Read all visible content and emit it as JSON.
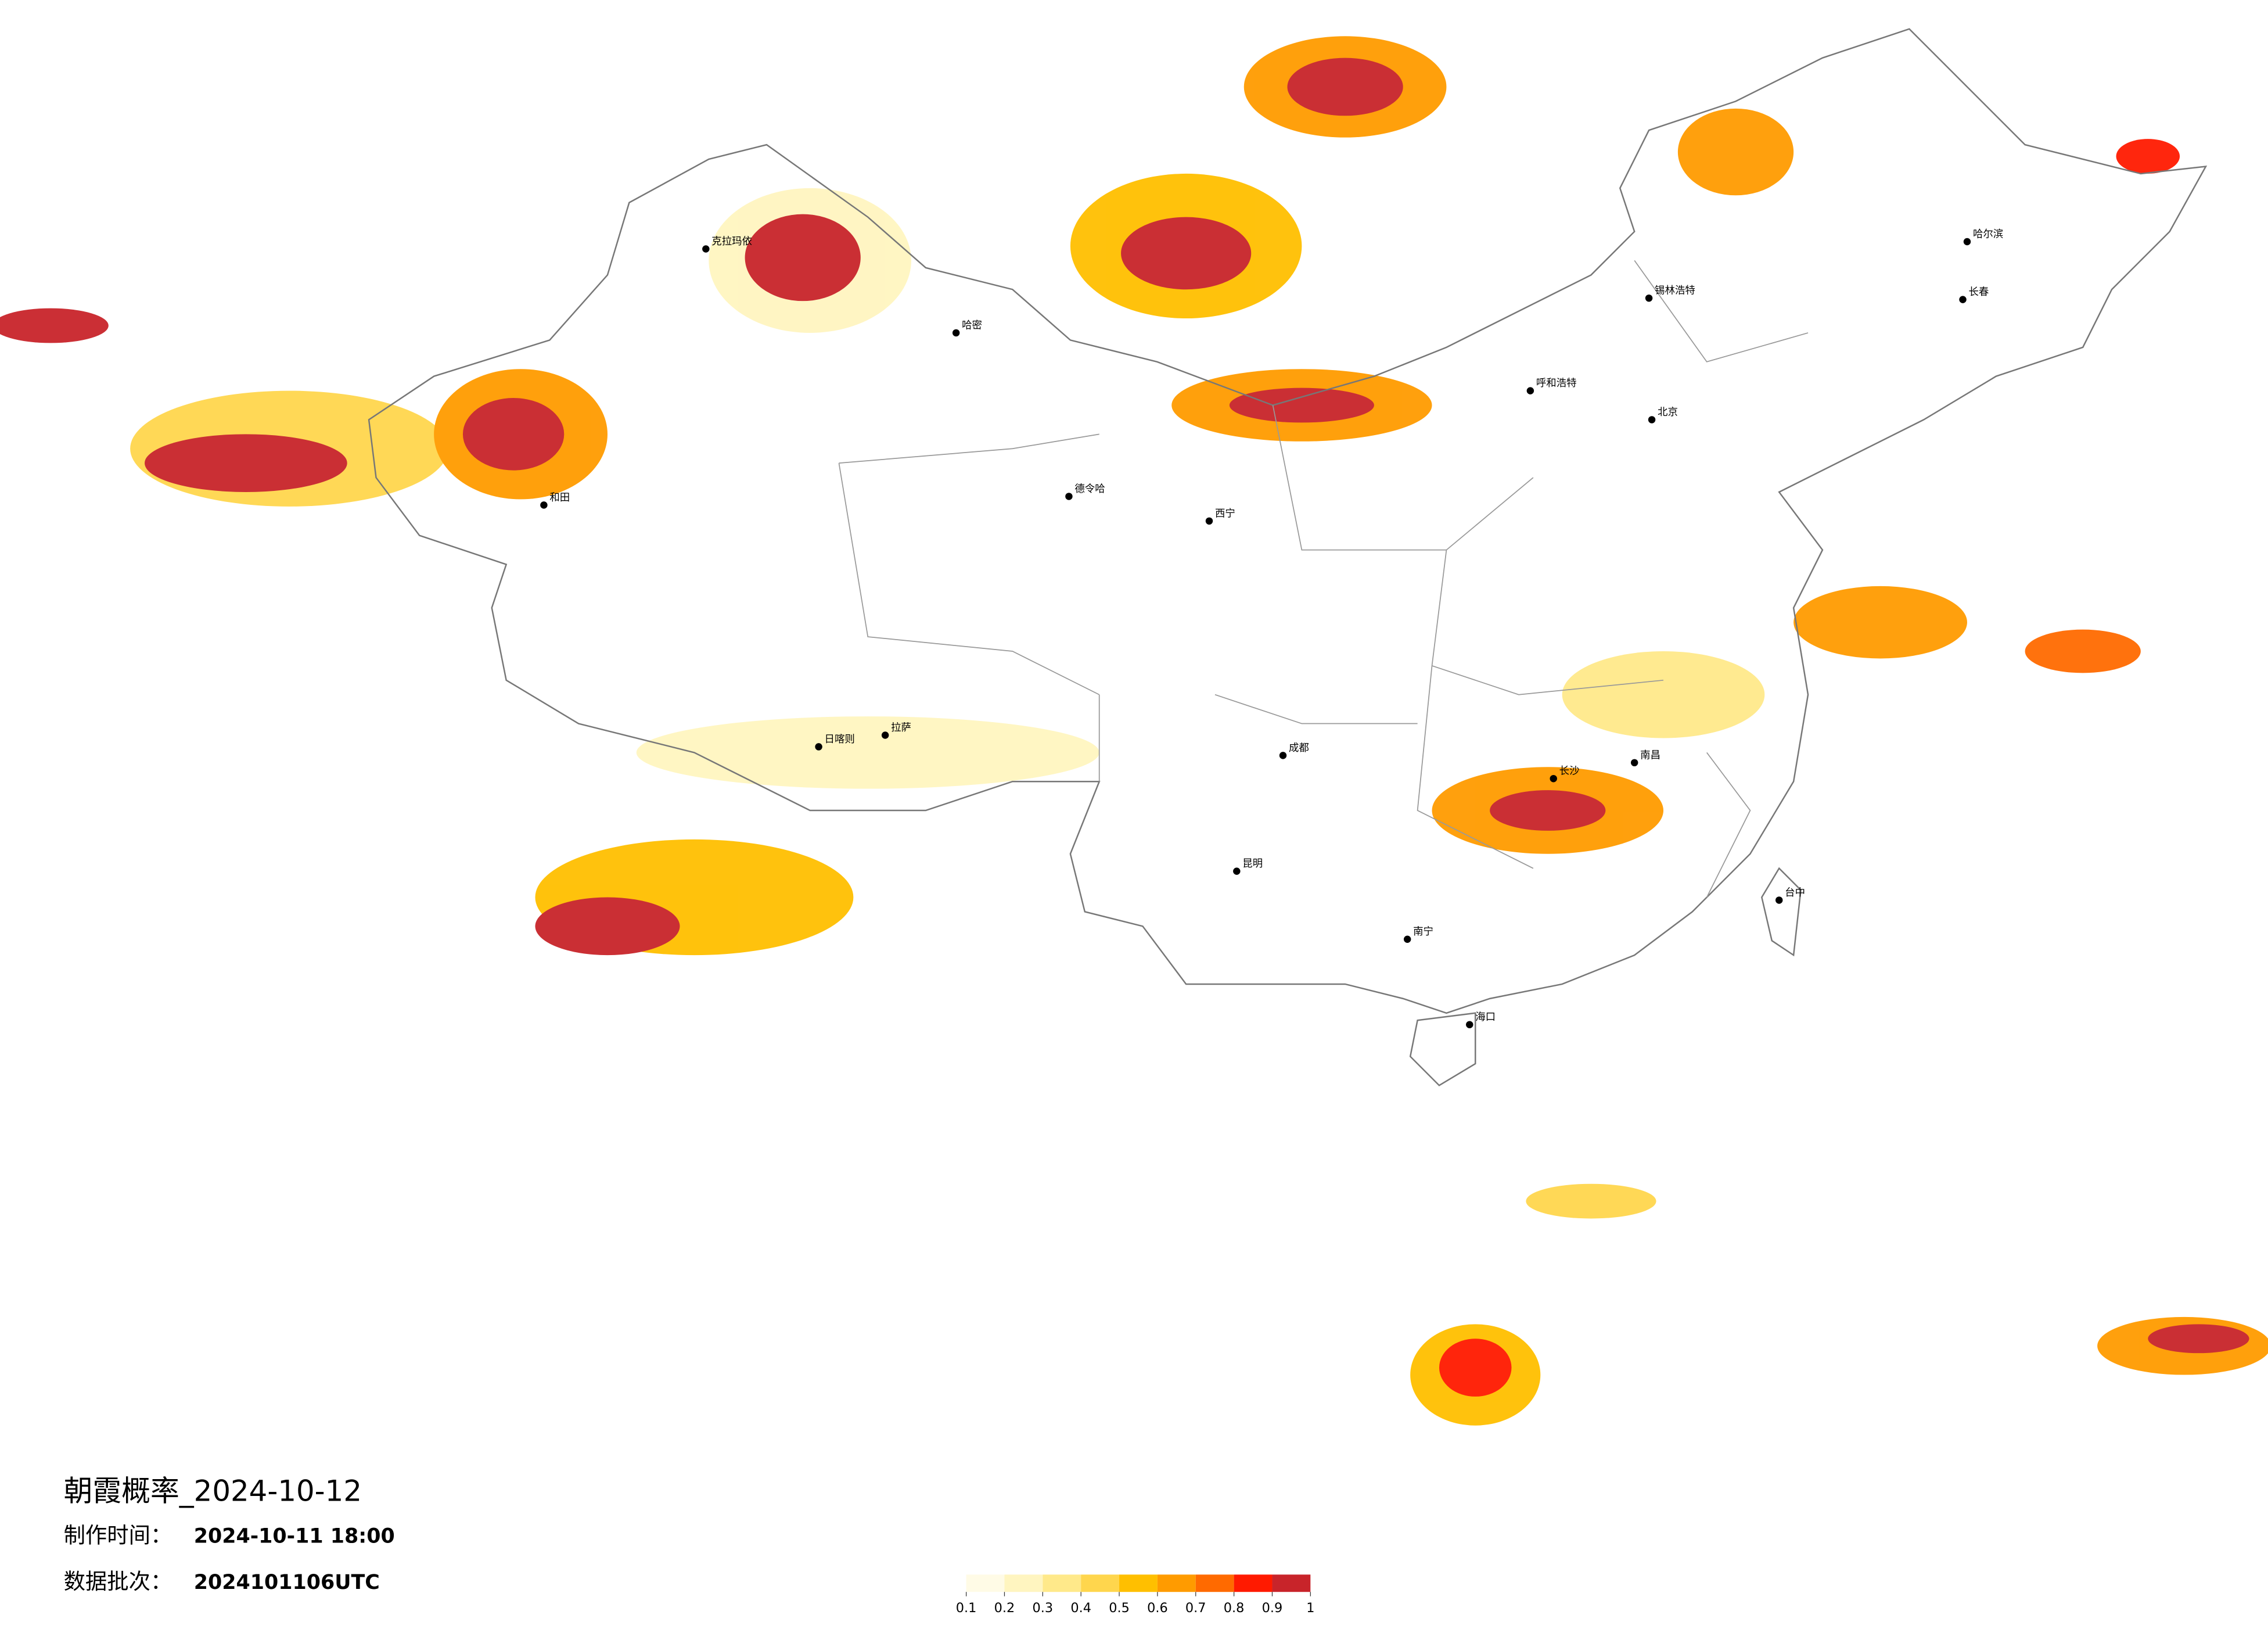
{
  "title": "朝霞概率_2024-10-12",
  "made_time": {
    "label": "制作时间：",
    "value": "2024-10-11 18:00"
  },
  "batch": {
    "label": "数据批次：",
    "value": "2024101106UTC"
  },
  "legend": {
    "colors": [
      "#fffbe6",
      "#fff5c0",
      "#ffe98a",
      "#ffd64d",
      "#ffbf00",
      "#ff9b00",
      "#ff6a00",
      "#ff1a00",
      "#c8242a"
    ],
    "ticks": [
      0.1,
      0.2,
      0.3,
      0.4,
      0.5,
      0.6,
      0.7,
      0.8,
      0.9,
      1
    ]
  },
  "cities": [
    "克拉玛依",
    "哈密",
    "和田",
    "德令哈",
    "拉萨",
    "日喀则",
    "西宁",
    "成都",
    "昆明",
    "南宁",
    "海口",
    "北京",
    "呼和浩特",
    "锡林浩特",
    "哈尔滨",
    "长春",
    "长沙",
    "南昌",
    "台中"
  ]
}
